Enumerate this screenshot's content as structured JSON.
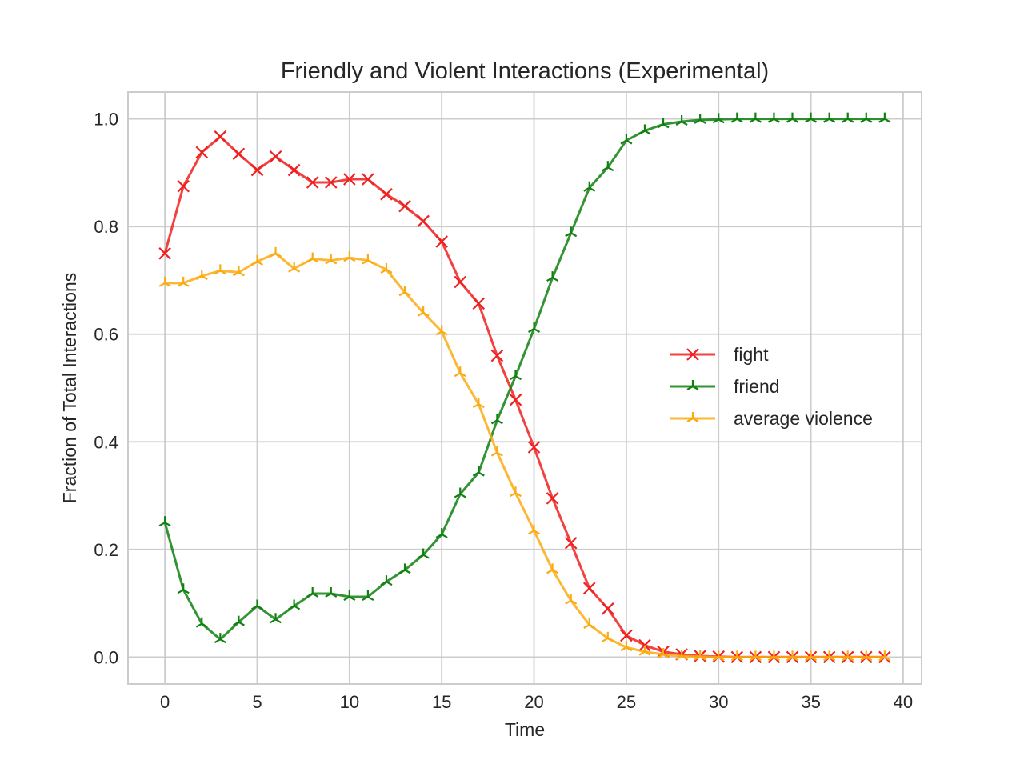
{
  "chart_data": {
    "type": "line",
    "title": "Friendly and Violent Interactions (Experimental)",
    "xlabel": "Time",
    "ylabel": "Fraction of Total Interactions",
    "xlim": [
      -2,
      41
    ],
    "ylim": [
      -0.05,
      1.05
    ],
    "xticks": [
      0,
      5,
      10,
      15,
      20,
      25,
      30,
      35,
      40
    ],
    "xtick_labels": [
      "0",
      "5",
      "10",
      "15",
      "20",
      "25",
      "30",
      "35",
      "40"
    ],
    "yticks": [
      0.0,
      0.2,
      0.4,
      0.6,
      0.8,
      1.0
    ],
    "ytick_labels": [
      "0.0",
      "0.2",
      "0.4",
      "0.6",
      "0.8",
      "1.0"
    ],
    "grid": true,
    "legend_position": "center-right",
    "x": [
      0,
      1,
      2,
      3,
      4,
      5,
      6,
      7,
      8,
      9,
      10,
      11,
      12,
      13,
      14,
      15,
      16,
      17,
      18,
      19,
      20,
      21,
      22,
      23,
      24,
      25,
      26,
      27,
      28,
      29,
      30,
      31,
      32,
      33,
      34,
      35,
      36,
      37,
      38,
      39
    ],
    "series": [
      {
        "name": "fight",
        "color": "#ee2020",
        "marker": "x",
        "values": [
          0.75,
          0.875,
          0.938,
          0.967,
          0.935,
          0.905,
          0.93,
          0.905,
          0.882,
          0.882,
          0.888,
          0.888,
          0.86,
          0.838,
          0.81,
          0.772,
          0.697,
          0.657,
          0.56,
          0.478,
          0.39,
          0.295,
          0.212,
          0.128,
          0.09,
          0.04,
          0.022,
          0.01,
          0.005,
          0.002,
          0.001,
          0.0,
          0.0,
          0.0,
          0.0,
          0.0,
          0.0,
          0.0,
          0.0,
          0.0
        ]
      },
      {
        "name": "friend",
        "color": "#108010",
        "marker": "tri",
        "values": [
          0.25,
          0.125,
          0.062,
          0.033,
          0.065,
          0.095,
          0.07,
          0.095,
          0.118,
          0.118,
          0.112,
          0.112,
          0.14,
          0.162,
          0.19,
          0.228,
          0.303,
          0.343,
          0.44,
          0.522,
          0.61,
          0.705,
          0.788,
          0.872,
          0.91,
          0.96,
          0.978,
          0.99,
          0.995,
          0.998,
          0.999,
          1.0,
          1.0,
          1.0,
          1.0,
          1.0,
          1.0,
          1.0,
          1.0,
          1.0
        ]
      },
      {
        "name": "average violence",
        "color": "#fbaa10",
        "marker": "tri",
        "values": [
          0.695,
          0.695,
          0.708,
          0.718,
          0.715,
          0.735,
          0.75,
          0.722,
          0.74,
          0.737,
          0.742,
          0.737,
          0.72,
          0.678,
          0.64,
          0.605,
          0.528,
          0.47,
          0.38,
          0.305,
          0.235,
          0.162,
          0.105,
          0.06,
          0.035,
          0.018,
          0.01,
          0.005,
          0.002,
          0.001,
          0.0,
          0.0,
          0.0,
          0.0,
          0.0,
          0.0,
          0.0,
          0.0,
          0.0,
          0.0
        ]
      }
    ]
  }
}
